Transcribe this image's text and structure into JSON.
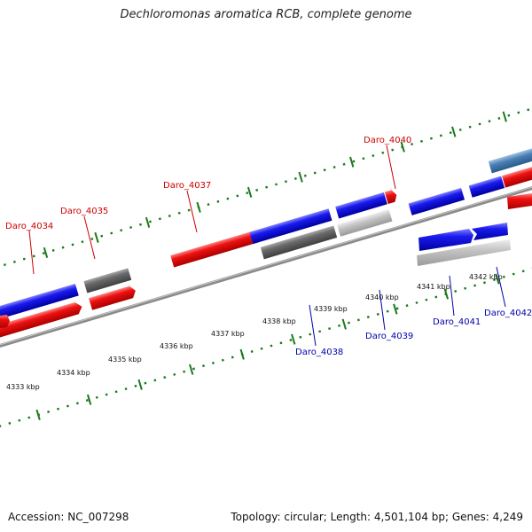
{
  "title": "Dechloromonas aromatica RCB, complete genome",
  "footer": {
    "accession": "Accession: NC_007298",
    "summary": "Topology: circular; Length: 4,501,104 bp; Genes: 4,249"
  },
  "colors": {
    "forward_label": "#cc0000",
    "reverse_label": "#0000aa",
    "forward_gene": "#ee1111",
    "reverse_gene": "#1a1aee",
    "gray_gene": "#6a6a6a",
    "light_gray_gene": "#c4c4c4",
    "steel_blue_gene": "#4a7fb5",
    "backbone": "#8a8a8a",
    "tick": "#1a7a1a"
  },
  "ruler_labels": [
    "4333 kbp",
    "4334 kbp",
    "4335 kbp",
    "4336 kbp",
    "4337 kbp",
    "4338 kbp",
    "4339 kbp",
    "4340 kbp",
    "4341 kbp",
    "4342 kbp"
  ],
  "forward_labels": [
    "Daro_4034",
    "Daro_4035",
    "Daro_4037",
    "Daro_4040"
  ],
  "reverse_labels": [
    "Daro_4038",
    "Daro_4039",
    "Daro_4041",
    "Daro_4042"
  ]
}
